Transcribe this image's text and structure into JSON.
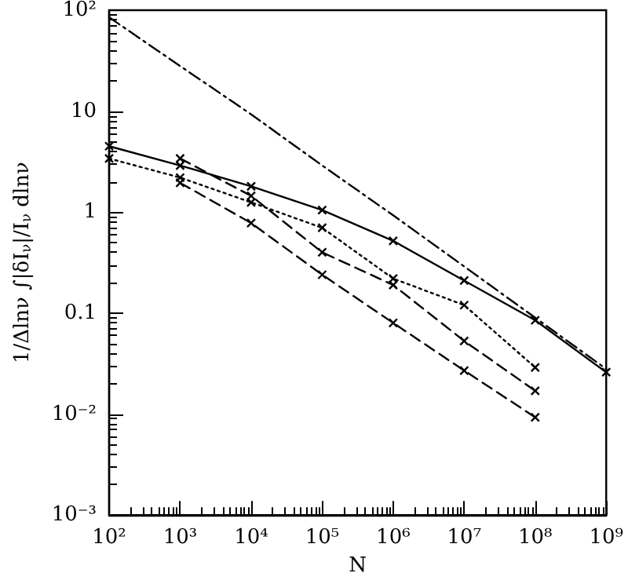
{
  "chart_data": {
    "type": "line",
    "xlabel": "N",
    "ylabel": "1/Δlnν ∫|δI$_{ν}$|/I$_{ν}$ dlnν",
    "log": "xy",
    "xlim": [
      100,
      1000000000
    ],
    "ylim": [
      0.001,
      100
    ],
    "xticks": [
      {
        "value": 100,
        "label": "10²"
      },
      {
        "value": 1000,
        "label": "10³"
      },
      {
        "value": 10000,
        "label": "10⁴"
      },
      {
        "value": 100000,
        "label": "10⁵"
      },
      {
        "value": 1000000,
        "label": "10⁶"
      },
      {
        "value": 10000000,
        "label": "10⁷"
      },
      {
        "value": 100000000,
        "label": "10⁸"
      },
      {
        "value": 1000000000,
        "label": "10⁹"
      }
    ],
    "yticks": [
      {
        "value": 0.001,
        "label": "10⁻³"
      },
      {
        "value": 0.01,
        "label": "10⁻²"
      },
      0.1,
      1,
      10,
      {
        "value": 100,
        "label": "10²"
      }
    ],
    "series": [
      {
        "color": "#000000",
        "line_style": "dashdot",
        "marker": "none",
        "x": [
          100,
          1000,
          10000,
          100000,
          1000000,
          10000000,
          100000000,
          1000000000
        ],
        "values": [
          85,
          28,
          9.3,
          2.9,
          0.93,
          0.29,
          0.09,
          0.028
        ]
      },
      {
        "color": "#000000",
        "line_style": "solid",
        "marker": "cross",
        "x": [
          100,
          1000,
          10000,
          100000,
          1000000,
          10000000,
          100000000,
          1000000000
        ],
        "values": [
          4.5,
          2.9,
          1.8,
          1.05,
          0.52,
          0.21,
          0.085,
          0.026
        ]
      },
      {
        "color": "#000000",
        "line_style": "dashed",
        "marker": "cross",
        "x": [
          1000,
          10000,
          100000,
          1000000,
          10000000,
          100000000
        ],
        "values": [
          3.4,
          1.45,
          0.4,
          0.19,
          0.053,
          0.017
        ]
      },
      {
        "color": "#000000",
        "line_style": "dotted",
        "marker": "cross",
        "x": [
          100,
          1000,
          10000,
          100000,
          1000000,
          10000000,
          100000000
        ],
        "values": [
          3.4,
          2.2,
          1.25,
          0.7,
          0.22,
          0.12,
          0.029
        ]
      },
      {
        "color": "#000000",
        "line_style": "dashed",
        "marker": "cross",
        "x": [
          1000,
          10000,
          100000,
          1000000,
          10000000,
          100000000
        ],
        "values": [
          1.95,
          0.78,
          0.24,
          0.08,
          0.027,
          0.0093
        ]
      }
    ]
  }
}
